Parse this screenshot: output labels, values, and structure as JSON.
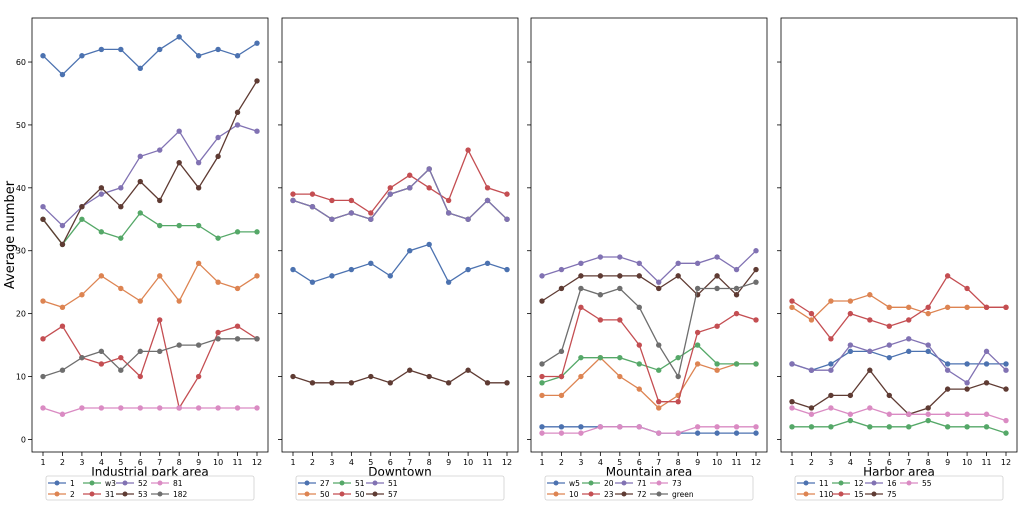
{
  "ylabel": "Average number",
  "ytick_labels": [
    "0",
    "10",
    "20",
    "30",
    "40",
    "50",
    "60"
  ],
  "chart_data": [
    {
      "type": "line",
      "xlabel": "Industrial park area",
      "ylabel": "Average number",
      "ylim": [
        -2,
        67
      ],
      "x": [
        1,
        2,
        3,
        4,
        5,
        6,
        7,
        8,
        9,
        10,
        11,
        12
      ],
      "series": [
        {
          "name": "1",
          "color": "#4c72b0",
          "values": [
            61,
            58,
            61,
            62,
            62,
            59,
            62,
            64,
            61,
            62,
            61,
            63
          ]
        },
        {
          "name": "2",
          "color": "#dd8452",
          "values": [
            22,
            21,
            23,
            26,
            24,
            22,
            26,
            22,
            28,
            25,
            24,
            26
          ]
        },
        {
          "name": "w3",
          "color": "#55a868",
          "values": [
            35,
            31,
            35,
            33,
            32,
            36,
            34,
            34,
            34,
            32,
            33,
            33
          ]
        },
        {
          "name": "31",
          "color": "#c44e52",
          "values": [
            16,
            18,
            13,
            12,
            13,
            10,
            19,
            5,
            10,
            17,
            18,
            16
          ]
        },
        {
          "name": "52",
          "color": "#8172b3",
          "values": [
            37,
            34,
            37,
            39,
            40,
            45,
            46,
            49,
            44,
            48,
            50,
            49
          ]
        },
        {
          "name": "53",
          "color": "#5f3b33",
          "values": [
            35,
            31,
            37,
            40,
            37,
            41,
            38,
            44,
            40,
            45,
            52,
            57
          ]
        },
        {
          "name": "81",
          "color": "#da8bc3",
          "values": [
            5,
            4,
            5,
            5,
            5,
            5,
            5,
            5,
            5,
            5,
            5,
            5
          ]
        },
        {
          "name": "182",
          "color": "#6e6e6e",
          "values": [
            10,
            11,
            13,
            14,
            11,
            14,
            14,
            15,
            15,
            16,
            16,
            16
          ]
        }
      ],
      "legend": {
        "placement": "bottom",
        "columns": 5
      }
    },
    {
      "type": "line",
      "xlabel": "Downtown",
      "ylim": [
        -2,
        67
      ],
      "x": [
        1,
        2,
        3,
        4,
        5,
        6,
        7,
        8,
        9,
        10,
        11,
        12
      ],
      "series": [
        {
          "name": "27",
          "color": "#4c72b0",
          "values": [
            27,
            25,
            26,
            27,
            28,
            26,
            30,
            31,
            25,
            27,
            28,
            27
          ]
        },
        {
          "name": "50",
          "color": "#dd8452",
          "values": [
            38,
            37,
            35,
            36,
            35,
            39,
            40,
            43,
            36,
            35,
            38,
            35
          ]
        },
        {
          "name": "51",
          "color": "#55a868",
          "values": [
            38,
            37,
            35,
            36,
            35,
            39,
            40,
            43,
            36,
            35,
            38,
            35
          ]
        },
        {
          "name": "50",
          "color": "#c44e52",
          "values": [
            39,
            39,
            38,
            38,
            36,
            40,
            42,
            40,
            38,
            46,
            40,
            39
          ]
        },
        {
          "name": "51",
          "color": "#8172b3",
          "values": [
            38,
            37,
            35,
            36,
            35,
            39,
            40,
            43,
            36,
            35,
            38,
            35
          ]
        },
        {
          "name": "57",
          "color": "#5f3b33",
          "values": [
            10,
            9,
            9,
            9,
            10,
            9,
            11,
            10,
            9,
            11,
            9,
            9
          ]
        }
      ],
      "legend": {
        "placement": "bottom",
        "columns": 5
      }
    },
    {
      "type": "line",
      "xlabel": "Mountain area",
      "ylim": [
        -2,
        67
      ],
      "x": [
        1,
        2,
        3,
        4,
        5,
        6,
        7,
        8,
        9,
        10,
        11,
        12
      ],
      "series": [
        {
          "name": "w5",
          "color": "#4c72b0",
          "values": [
            2,
            2,
            2,
            2,
            2,
            2,
            1,
            1,
            1,
            1,
            1,
            1
          ]
        },
        {
          "name": "10",
          "color": "#dd8452",
          "values": [
            7,
            7,
            10,
            13,
            10,
            8,
            5,
            7,
            12,
            11,
            12,
            12
          ]
        },
        {
          "name": "20",
          "color": "#55a868",
          "values": [
            9,
            10,
            13,
            13,
            13,
            12,
            11,
            13,
            15,
            12,
            12,
            12
          ]
        },
        {
          "name": "23",
          "color": "#c44e52",
          "values": [
            10,
            10,
            21,
            19,
            19,
            15,
            6,
            6,
            17,
            18,
            20,
            19
          ]
        },
        {
          "name": "71",
          "color": "#8172b3",
          "values": [
            26,
            27,
            28,
            29,
            29,
            28,
            25,
            28,
            28,
            29,
            27,
            30
          ]
        },
        {
          "name": "72",
          "color": "#5f3b33",
          "values": [
            22,
            24,
            26,
            26,
            26,
            26,
            24,
            26,
            23,
            26,
            23,
            27
          ]
        },
        {
          "name": "73",
          "color": "#da8bc3",
          "values": [
            1,
            1,
            1,
            2,
            2,
            2,
            1,
            1,
            2,
            2,
            2,
            2
          ]
        },
        {
          "name": "green",
          "color": "#6e6e6e",
          "values": [
            12,
            14,
            24,
            23,
            24,
            21,
            15,
            10,
            24,
            24,
            24,
            25
          ]
        }
      ],
      "legend": {
        "placement": "bottom",
        "columns": 5
      }
    },
    {
      "type": "line",
      "xlabel": "Harbor area",
      "ylim": [
        -2,
        67
      ],
      "x": [
        1,
        2,
        3,
        4,
        5,
        6,
        7,
        8,
        9,
        10,
        11,
        12
      ],
      "series": [
        {
          "name": "11",
          "color": "#4c72b0",
          "values": [
            12,
            11,
            12,
            14,
            14,
            13,
            14,
            14,
            12,
            12,
            12,
            12
          ]
        },
        {
          "name": "110",
          "color": "#dd8452",
          "values": [
            21,
            19,
            22,
            22,
            23,
            21,
            21,
            20,
            21,
            21,
            21,
            21
          ]
        },
        {
          "name": "12",
          "color": "#55a868",
          "values": [
            2,
            2,
            2,
            3,
            2,
            2,
            2,
            3,
            2,
            2,
            2,
            1
          ]
        },
        {
          "name": "15",
          "color": "#c44e52",
          "values": [
            22,
            20,
            16,
            20,
            19,
            18,
            19,
            21,
            26,
            24,
            21,
            21
          ]
        },
        {
          "name": "16",
          "color": "#8172b3",
          "values": [
            12,
            11,
            11,
            15,
            14,
            15,
            16,
            15,
            11,
            9,
            14,
            11
          ]
        },
        {
          "name": "75",
          "color": "#5f3b33",
          "values": [
            6,
            5,
            7,
            7,
            11,
            7,
            4,
            5,
            8,
            8,
            9,
            8
          ]
        },
        {
          "name": "55",
          "color": "#da8bc3",
          "values": [
            5,
            4,
            5,
            4,
            5,
            4,
            4,
            4,
            4,
            4,
            4,
            3
          ]
        }
      ],
      "legend": {
        "placement": "bottom",
        "columns": 5
      }
    }
  ]
}
